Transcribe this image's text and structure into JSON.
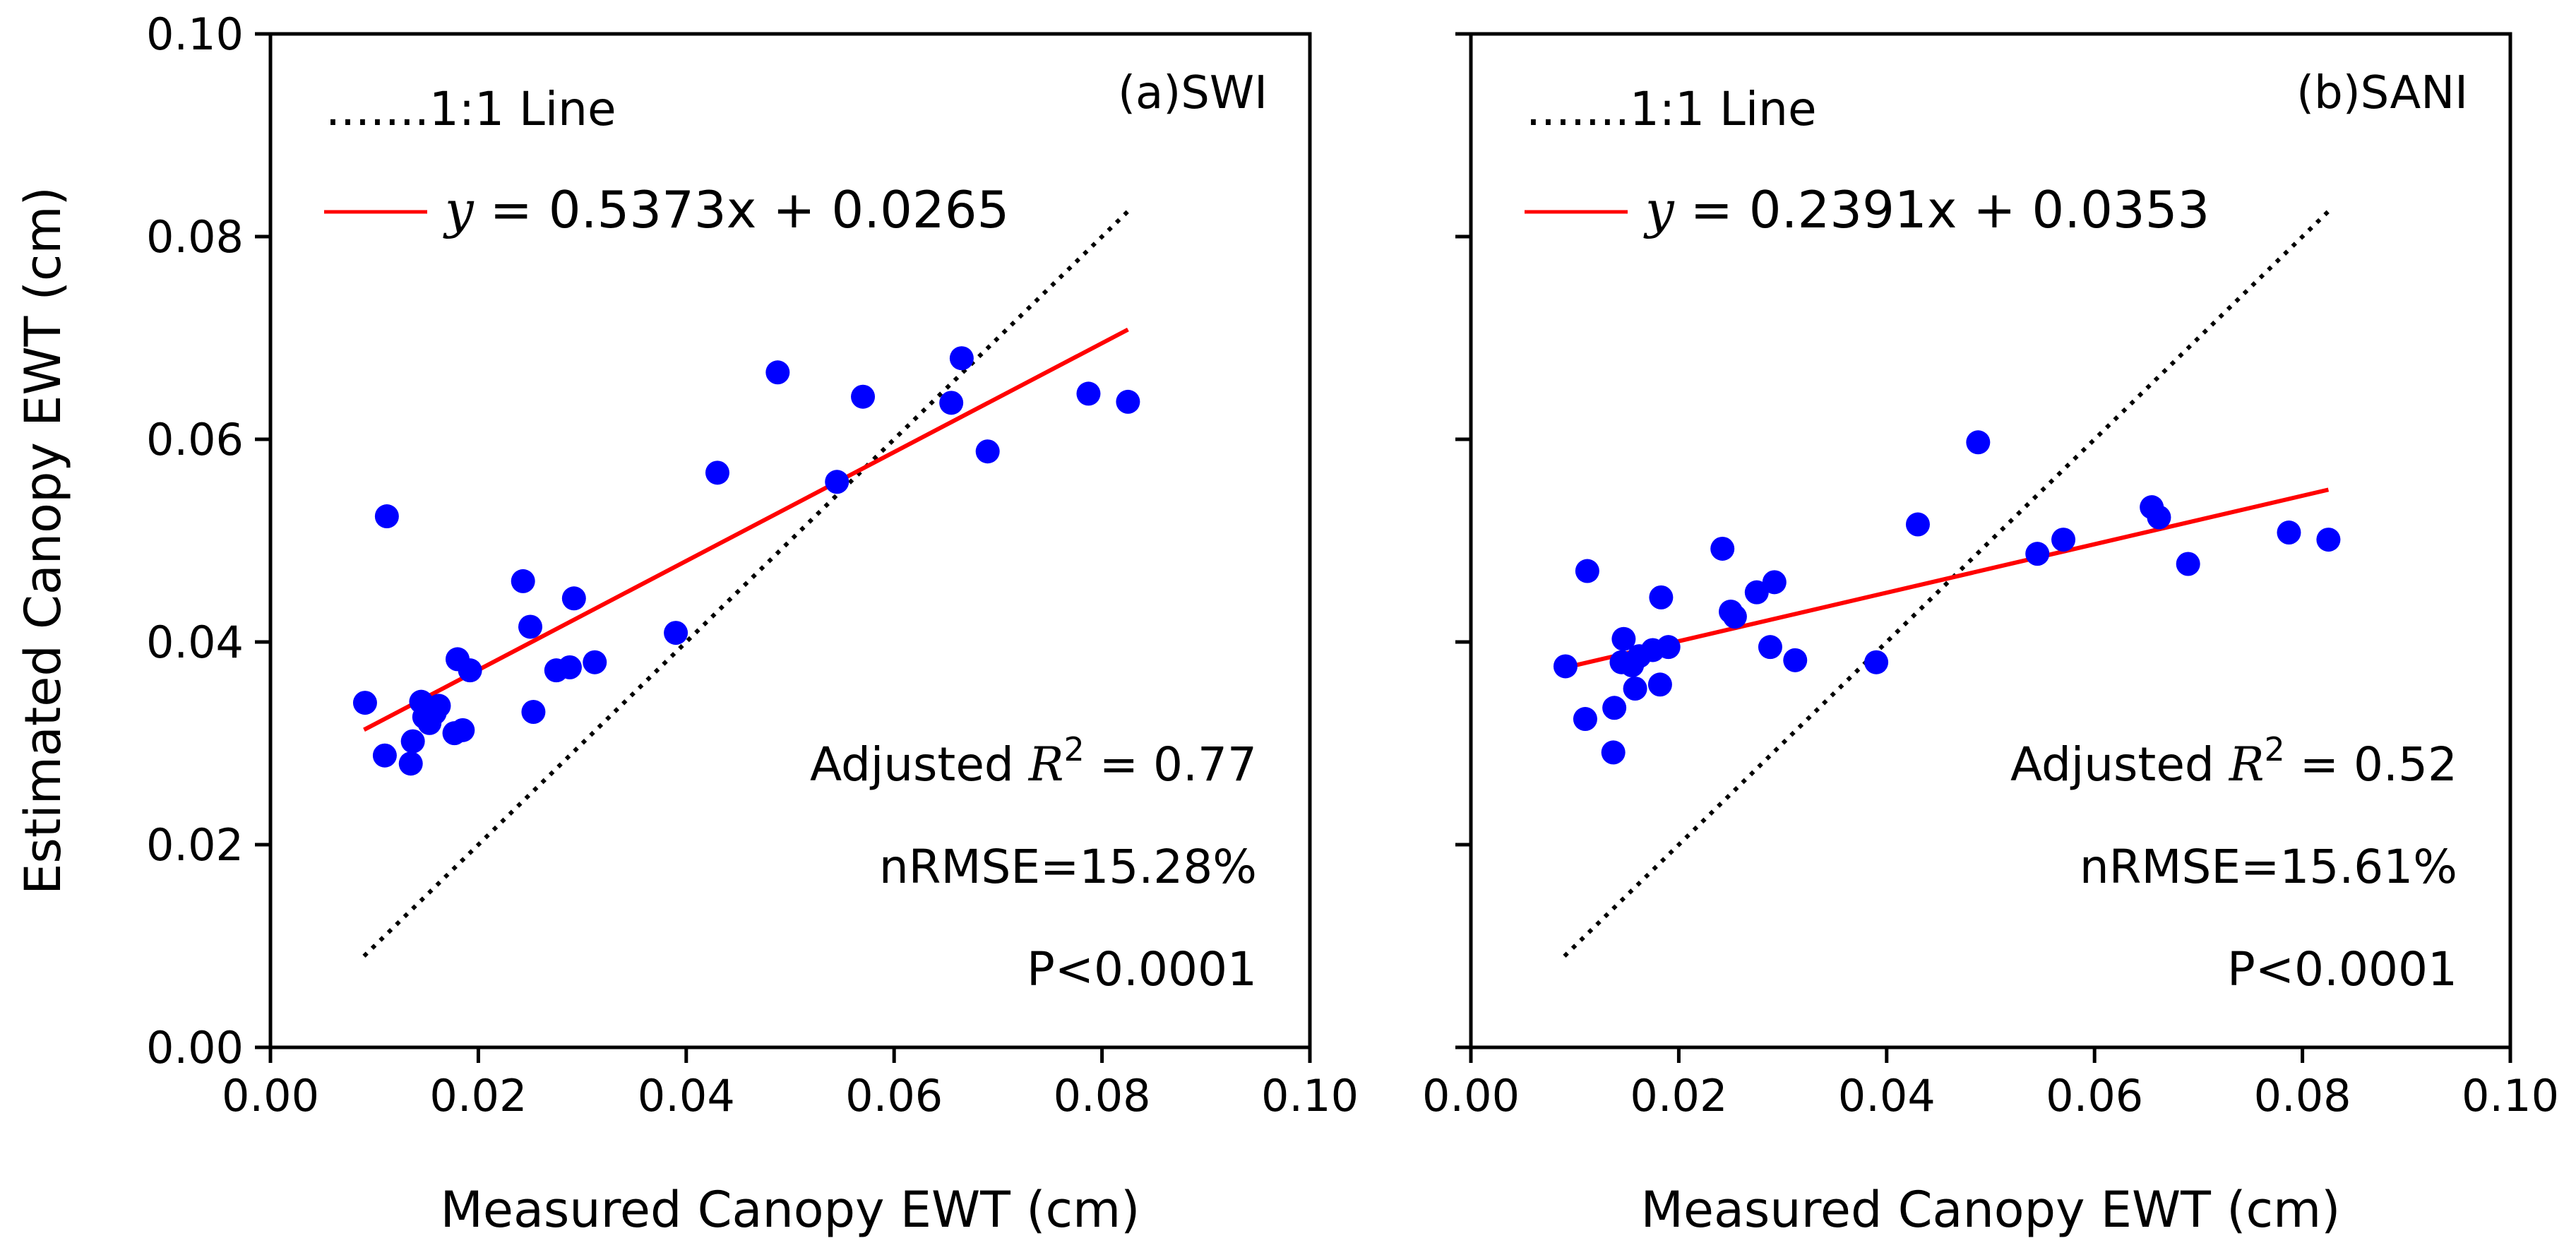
{
  "chart_data": [
    {
      "type": "scatter",
      "panel_label": "(a)SWI",
      "xlabel": "Measured Canopy EWT (cm)",
      "ylabel": "Estimated Canopy EWT (cm)",
      "xlim": [
        0,
        0.1
      ],
      "ylim": [
        0,
        0.1
      ],
      "xticks": [
        "0.00",
        "0.02",
        "0.04",
        "0.06",
        "0.08",
        "0.10"
      ],
      "yticks": [
        "0.00",
        "0.02",
        "0.04",
        "0.06",
        "0.08",
        "0.10"
      ],
      "one_to_one": {
        "label": ".......1:1 Line",
        "from": [
          0.009,
          0.009
        ],
        "to": [
          0.0825,
          0.0825
        ]
      },
      "fit": {
        "slope": 0.5373,
        "intercept": 0.0265,
        "x_range": [
          0.009,
          0.0825
        ],
        "eq_lhs": "y",
        "eq_rhs": " = 0.5373x + 0.0265"
      },
      "stats": {
        "r2_prefix": "Adjusted ",
        "r2_var": "R",
        "r2_sup": "2",
        "r2_value": " =  0.77",
        "nrmse": "nRMSE=15.28%",
        "p": "P<0.0001"
      },
      "colors": {
        "points": "#0000ff",
        "fit": "#ff0000",
        "one_to_one": "#000000"
      },
      "points": [
        [
          0.0091,
          0.034
        ],
        [
          0.011,
          0.0288
        ],
        [
          0.0112,
          0.0524
        ],
        [
          0.0135,
          0.028
        ],
        [
          0.0137,
          0.0302
        ],
        [
          0.0145,
          0.0341
        ],
        [
          0.0148,
          0.0326
        ],
        [
          0.0153,
          0.032
        ],
        [
          0.0158,
          0.033
        ],
        [
          0.0162,
          0.0337
        ],
        [
          0.0177,
          0.031
        ],
        [
          0.018,
          0.0383
        ],
        [
          0.0185,
          0.0313
        ],
        [
          0.0192,
          0.0372
        ],
        [
          0.0243,
          0.046
        ],
        [
          0.025,
          0.0415
        ],
        [
          0.0253,
          0.0331
        ],
        [
          0.0275,
          0.0372
        ],
        [
          0.0288,
          0.0375
        ],
        [
          0.0292,
          0.0443
        ],
        [
          0.0312,
          0.038
        ],
        [
          0.039,
          0.0409
        ],
        [
          0.043,
          0.0567
        ],
        [
          0.0488,
          0.0666
        ],
        [
          0.0545,
          0.0558
        ],
        [
          0.057,
          0.0642
        ],
        [
          0.0655,
          0.0636
        ],
        [
          0.0665,
          0.068
        ],
        [
          0.069,
          0.0588
        ],
        [
          0.0787,
          0.0645
        ],
        [
          0.0825,
          0.0637
        ]
      ]
    },
    {
      "type": "scatter",
      "panel_label": "(b)SANI",
      "xlabel": "Measured Canopy EWT (cm)",
      "ylabel": "",
      "xlim": [
        0,
        0.1
      ],
      "ylim": [
        0,
        0.1
      ],
      "xticks": [
        "0.00",
        "0.02",
        "0.04",
        "0.06",
        "0.08",
        "0.10"
      ],
      "yticks": [],
      "one_to_one": {
        "label": ".......1:1 Line",
        "from": [
          0.009,
          0.009
        ],
        "to": [
          0.0825,
          0.0825
        ]
      },
      "fit": {
        "slope": 0.2391,
        "intercept": 0.0353,
        "x_range": [
          0.009,
          0.0825
        ],
        "eq_lhs": "y",
        "eq_rhs": " = 0.2391x + 0.0353"
      },
      "stats": {
        "r2_prefix": "Adjusted ",
        "r2_var": "R",
        "r2_sup": "2",
        "r2_value": " =  0.52",
        "nrmse": "nRMSE=15.61%",
        "p": "P<0.0001"
      },
      "colors": {
        "points": "#0000ff",
        "fit": "#ff0000",
        "one_to_one": "#000000"
      },
      "points": [
        [
          0.0091,
          0.0376
        ],
        [
          0.011,
          0.0324
        ],
        [
          0.0112,
          0.047
        ],
        [
          0.0137,
          0.0291
        ],
        [
          0.0138,
          0.0335
        ],
        [
          0.0145,
          0.038
        ],
        [
          0.0147,
          0.0403
        ],
        [
          0.0155,
          0.0377
        ],
        [
          0.0158,
          0.0354
        ],
        [
          0.0162,
          0.0386
        ],
        [
          0.0175,
          0.0392
        ],
        [
          0.0182,
          0.0358
        ],
        [
          0.0183,
          0.0444
        ],
        [
          0.019,
          0.0395
        ],
        [
          0.0242,
          0.0492
        ],
        [
          0.025,
          0.043
        ],
        [
          0.0254,
          0.0425
        ],
        [
          0.0275,
          0.0449
        ],
        [
          0.0288,
          0.0395
        ],
        [
          0.0292,
          0.0459
        ],
        [
          0.0312,
          0.0382
        ],
        [
          0.039,
          0.038
        ],
        [
          0.043,
          0.0516
        ],
        [
          0.0488,
          0.0597
        ],
        [
          0.0545,
          0.0487
        ],
        [
          0.057,
          0.0501
        ],
        [
          0.0655,
          0.0533
        ],
        [
          0.0662,
          0.0523
        ],
        [
          0.069,
          0.0477
        ],
        [
          0.0787,
          0.0508
        ],
        [
          0.0825,
          0.0501
        ]
      ]
    }
  ]
}
